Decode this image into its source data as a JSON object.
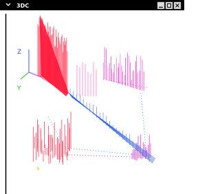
{
  "window": {
    "title": "3DC"
  },
  "axes": {
    "z_label": "Z",
    "y_label": "Y"
  }
}
